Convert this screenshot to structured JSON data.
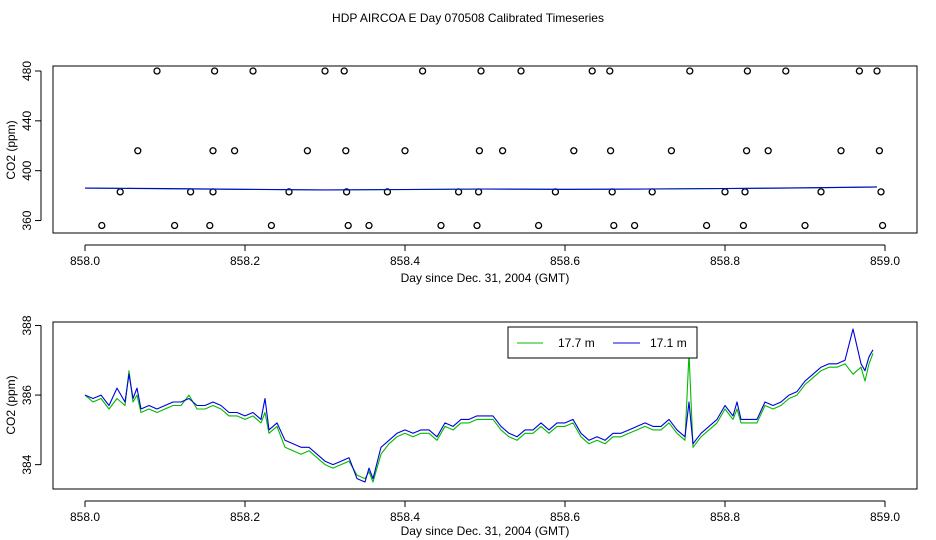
{
  "figure_title": "HDP AIRCOA E  Day 070508  Calibrated Timeseries",
  "chart_data": [
    {
      "type": "scatter",
      "title": "",
      "xlabel": "Day since Dec. 31, 2004 (GMT)",
      "ylabel": "CO2 (ppm)",
      "xlim": [
        857.96,
        859.04
      ],
      "ylim": [
        350,
        484
      ],
      "xticks": [
        858.0,
        858.2,
        858.4,
        858.6,
        858.8,
        859.0
      ],
      "xtick_labels": [
        "858.0",
        "858.2",
        "858.4",
        "858.6",
        "858.8",
        "859.0"
      ],
      "yticks": [
        360,
        400,
        440,
        480
      ],
      "ytick_labels": [
        "360",
        "400",
        "440",
        "480"
      ],
      "grid": false,
      "legend": "none",
      "series": [
        {
          "style": "points",
          "color": "#000000",
          "points": [
            [
              858.09,
              480
            ],
            [
              858.162,
              480
            ],
            [
              858.21,
              480
            ],
            [
              858.3,
              480
            ],
            [
              858.324,
              480
            ],
            [
              858.422,
              480
            ],
            [
              858.495,
              480
            ],
            [
              858.545,
              480
            ],
            [
              858.634,
              480
            ],
            [
              858.656,
              480
            ],
            [
              858.756,
              480
            ],
            [
              858.828,
              480
            ],
            [
              858.876,
              480
            ],
            [
              858.968,
              480
            ],
            [
              858.99,
              480
            ],
            [
              858.066,
              416
            ],
            [
              858.16,
              416
            ],
            [
              858.187,
              416
            ],
            [
              858.278,
              416
            ],
            [
              858.326,
              416
            ],
            [
              858.4,
              416
            ],
            [
              858.493,
              416
            ],
            [
              858.522,
              416
            ],
            [
              858.611,
              416
            ],
            [
              858.657,
              416
            ],
            [
              858.733,
              416
            ],
            [
              858.827,
              416
            ],
            [
              858.854,
              416
            ],
            [
              858.945,
              416
            ],
            [
              858.993,
              416
            ],
            [
              858.044,
              383
            ],
            [
              858.132,
              383
            ],
            [
              858.16,
              383
            ],
            [
              858.255,
              383
            ],
            [
              858.327,
              383
            ],
            [
              858.378,
              383
            ],
            [
              858.467,
              383
            ],
            [
              858.492,
              383
            ],
            [
              858.588,
              383
            ],
            [
              858.659,
              383
            ],
            [
              858.709,
              383
            ],
            [
              858.8,
              383
            ],
            [
              858.825,
              383
            ],
            [
              858.92,
              383
            ],
            [
              858.995,
              383
            ],
            [
              858.021,
              356
            ],
            [
              858.112,
              356
            ],
            [
              858.156,
              356
            ],
            [
              858.233,
              356
            ],
            [
              858.329,
              356
            ],
            [
              858.355,
              356
            ],
            [
              858.445,
              356
            ],
            [
              858.49,
              356
            ],
            [
              858.567,
              356
            ],
            [
              858.661,
              356
            ],
            [
              858.687,
              356
            ],
            [
              858.777,
              356
            ],
            [
              858.823,
              356
            ],
            [
              858.9,
              356
            ],
            [
              858.997,
              356
            ]
          ]
        },
        {
          "name": "17.7 m",
          "style": "line",
          "color": "#00bb00",
          "x": [
            858.0,
            858.1,
            858.2,
            858.3,
            858.4,
            858.5,
            858.6,
            858.7,
            858.8,
            858.9,
            858.99
          ],
          "y": [
            386,
            385.5,
            385,
            384.5,
            384.8,
            385.2,
            385,
            385.2,
            385.6,
            386.2,
            386.8
          ]
        },
        {
          "name": "17.1 m",
          "style": "line",
          "color": "#0000dd",
          "x": [
            858.0,
            858.1,
            858.2,
            858.3,
            858.4,
            858.5,
            858.6,
            858.7,
            858.8,
            858.9,
            858.99
          ],
          "y": [
            386,
            385.6,
            385.1,
            384.6,
            384.9,
            385.3,
            385.1,
            385.3,
            385.7,
            386.3,
            387
          ]
        }
      ]
    },
    {
      "type": "line",
      "title": "",
      "xlabel": "Day since Dec. 31, 2004 (GMT)",
      "ylabel": "CO2 (ppm)",
      "xlim": [
        857.96,
        859.04
      ],
      "ylim": [
        383.3,
        388.1
      ],
      "xticks": [
        858.0,
        858.2,
        858.4,
        858.6,
        858.8,
        859.0
      ],
      "xtick_labels": [
        "858.0",
        "858.2",
        "858.4",
        "858.6",
        "858.8",
        "859.0"
      ],
      "yticks": [
        384,
        386,
        388
      ],
      "ytick_labels": [
        "384",
        "386",
        "388"
      ],
      "grid": false,
      "legend": "top-right",
      "series": [
        {
          "name": "17.7 m",
          "color": "#00bb00",
          "x": [
            858.0,
            858.01,
            858.02,
            858.03,
            858.04,
            858.05,
            858.055,
            858.06,
            858.065,
            858.07,
            858.08,
            858.09,
            858.1,
            858.11,
            858.12,
            858.13,
            858.14,
            858.15,
            858.16,
            858.17,
            858.18,
            858.19,
            858.2,
            858.21,
            858.22,
            858.225,
            858.23,
            858.24,
            858.25,
            858.26,
            858.27,
            858.28,
            858.29,
            858.3,
            858.31,
            858.32,
            858.33,
            858.34,
            858.35,
            858.355,
            858.36,
            858.37,
            858.38,
            858.39,
            858.4,
            858.41,
            858.42,
            858.43,
            858.44,
            858.45,
            858.46,
            858.47,
            858.48,
            858.49,
            858.5,
            858.51,
            858.52,
            858.53,
            858.54,
            858.55,
            858.56,
            858.57,
            858.58,
            858.59,
            858.6,
            858.61,
            858.62,
            858.63,
            858.64,
            858.65,
            858.66,
            858.67,
            858.68,
            858.69,
            858.7,
            858.71,
            858.72,
            858.73,
            858.74,
            858.75,
            858.755,
            858.76,
            858.77,
            858.78,
            858.79,
            858.8,
            858.81,
            858.815,
            858.82,
            858.83,
            858.84,
            858.85,
            858.86,
            858.87,
            858.88,
            858.89,
            858.9,
            858.91,
            858.92,
            858.93,
            858.94,
            858.95,
            858.96,
            858.97,
            858.975,
            858.98,
            858.985
          ],
          "y": [
            386.0,
            385.8,
            385.9,
            385.6,
            385.9,
            385.7,
            386.7,
            385.8,
            386.0,
            385.5,
            385.6,
            385.5,
            385.6,
            385.7,
            385.7,
            386.0,
            385.6,
            385.6,
            385.7,
            385.6,
            385.4,
            385.4,
            385.3,
            385.4,
            385.2,
            385.5,
            384.9,
            385.1,
            384.5,
            384.4,
            384.3,
            384.4,
            384.2,
            384.0,
            383.9,
            384.0,
            384.1,
            383.7,
            383.6,
            383.8,
            383.5,
            384.3,
            384.6,
            384.8,
            384.9,
            384.8,
            384.9,
            384.9,
            384.7,
            385.1,
            385.0,
            385.2,
            385.2,
            385.3,
            385.3,
            385.3,
            385.0,
            384.8,
            384.7,
            384.9,
            384.9,
            385.1,
            384.9,
            385.1,
            385.1,
            385.2,
            384.8,
            384.6,
            384.7,
            384.6,
            384.8,
            384.8,
            384.9,
            385.0,
            385.1,
            385.0,
            385.0,
            385.2,
            384.9,
            384.7,
            387.2,
            384.5,
            384.8,
            385.0,
            385.2,
            385.6,
            385.3,
            385.6,
            385.2,
            385.2,
            385.2,
            385.7,
            385.6,
            385.7,
            385.9,
            386.0,
            386.3,
            386.5,
            386.7,
            386.8,
            386.8,
            386.9,
            386.6,
            386.8,
            386.4,
            386.9,
            387.2
          ]
        },
        {
          "name": "17.1 m",
          "color": "#0000dd",
          "x": [
            858.0,
            858.01,
            858.02,
            858.03,
            858.04,
            858.05,
            858.055,
            858.06,
            858.065,
            858.07,
            858.08,
            858.09,
            858.1,
            858.11,
            858.12,
            858.13,
            858.14,
            858.15,
            858.16,
            858.17,
            858.18,
            858.19,
            858.2,
            858.21,
            858.22,
            858.225,
            858.23,
            858.24,
            858.25,
            858.26,
            858.27,
            858.28,
            858.29,
            858.3,
            858.31,
            858.32,
            858.33,
            858.34,
            858.35,
            858.355,
            858.36,
            858.37,
            858.38,
            858.39,
            858.4,
            858.41,
            858.42,
            858.43,
            858.44,
            858.45,
            858.46,
            858.47,
            858.48,
            858.49,
            858.5,
            858.51,
            858.52,
            858.53,
            858.54,
            858.55,
            858.56,
            858.57,
            858.58,
            858.59,
            858.6,
            858.61,
            858.62,
            858.63,
            858.64,
            858.65,
            858.66,
            858.67,
            858.68,
            858.69,
            858.7,
            858.71,
            858.72,
            858.73,
            858.74,
            858.75,
            858.755,
            858.76,
            858.77,
            858.78,
            858.79,
            858.8,
            858.81,
            858.815,
            858.82,
            858.83,
            858.84,
            858.85,
            858.86,
            858.87,
            858.88,
            858.89,
            858.9,
            858.91,
            858.92,
            858.93,
            858.94,
            858.95,
            858.96,
            858.97,
            858.975,
            858.98,
            858.985
          ],
          "y": [
            386.0,
            385.9,
            386.0,
            385.7,
            386.2,
            385.8,
            386.6,
            385.9,
            386.2,
            385.6,
            385.7,
            385.6,
            385.7,
            385.8,
            385.8,
            385.9,
            385.7,
            385.7,
            385.8,
            385.7,
            385.5,
            385.5,
            385.4,
            385.5,
            385.3,
            385.9,
            385.0,
            385.2,
            384.7,
            384.6,
            384.5,
            384.5,
            384.3,
            384.1,
            384.0,
            384.1,
            384.2,
            383.6,
            383.5,
            383.9,
            383.6,
            384.5,
            384.7,
            384.9,
            385.0,
            384.9,
            385.0,
            385.0,
            384.8,
            385.2,
            385.1,
            385.3,
            385.3,
            385.4,
            385.4,
            385.4,
            385.1,
            384.9,
            384.8,
            385.0,
            385.0,
            385.2,
            385.0,
            385.2,
            385.2,
            385.3,
            384.9,
            384.7,
            384.8,
            384.7,
            384.9,
            384.9,
            385.0,
            385.1,
            385.2,
            385.1,
            385.1,
            385.3,
            385.0,
            384.8,
            385.8,
            384.6,
            384.9,
            385.1,
            385.3,
            385.7,
            385.4,
            385.8,
            385.3,
            385.3,
            385.3,
            385.8,
            385.7,
            385.8,
            386.0,
            386.1,
            386.4,
            386.6,
            386.8,
            386.9,
            386.9,
            387.0,
            387.9,
            386.9,
            386.7,
            387.1,
            387.3
          ]
        }
      ]
    }
  ]
}
